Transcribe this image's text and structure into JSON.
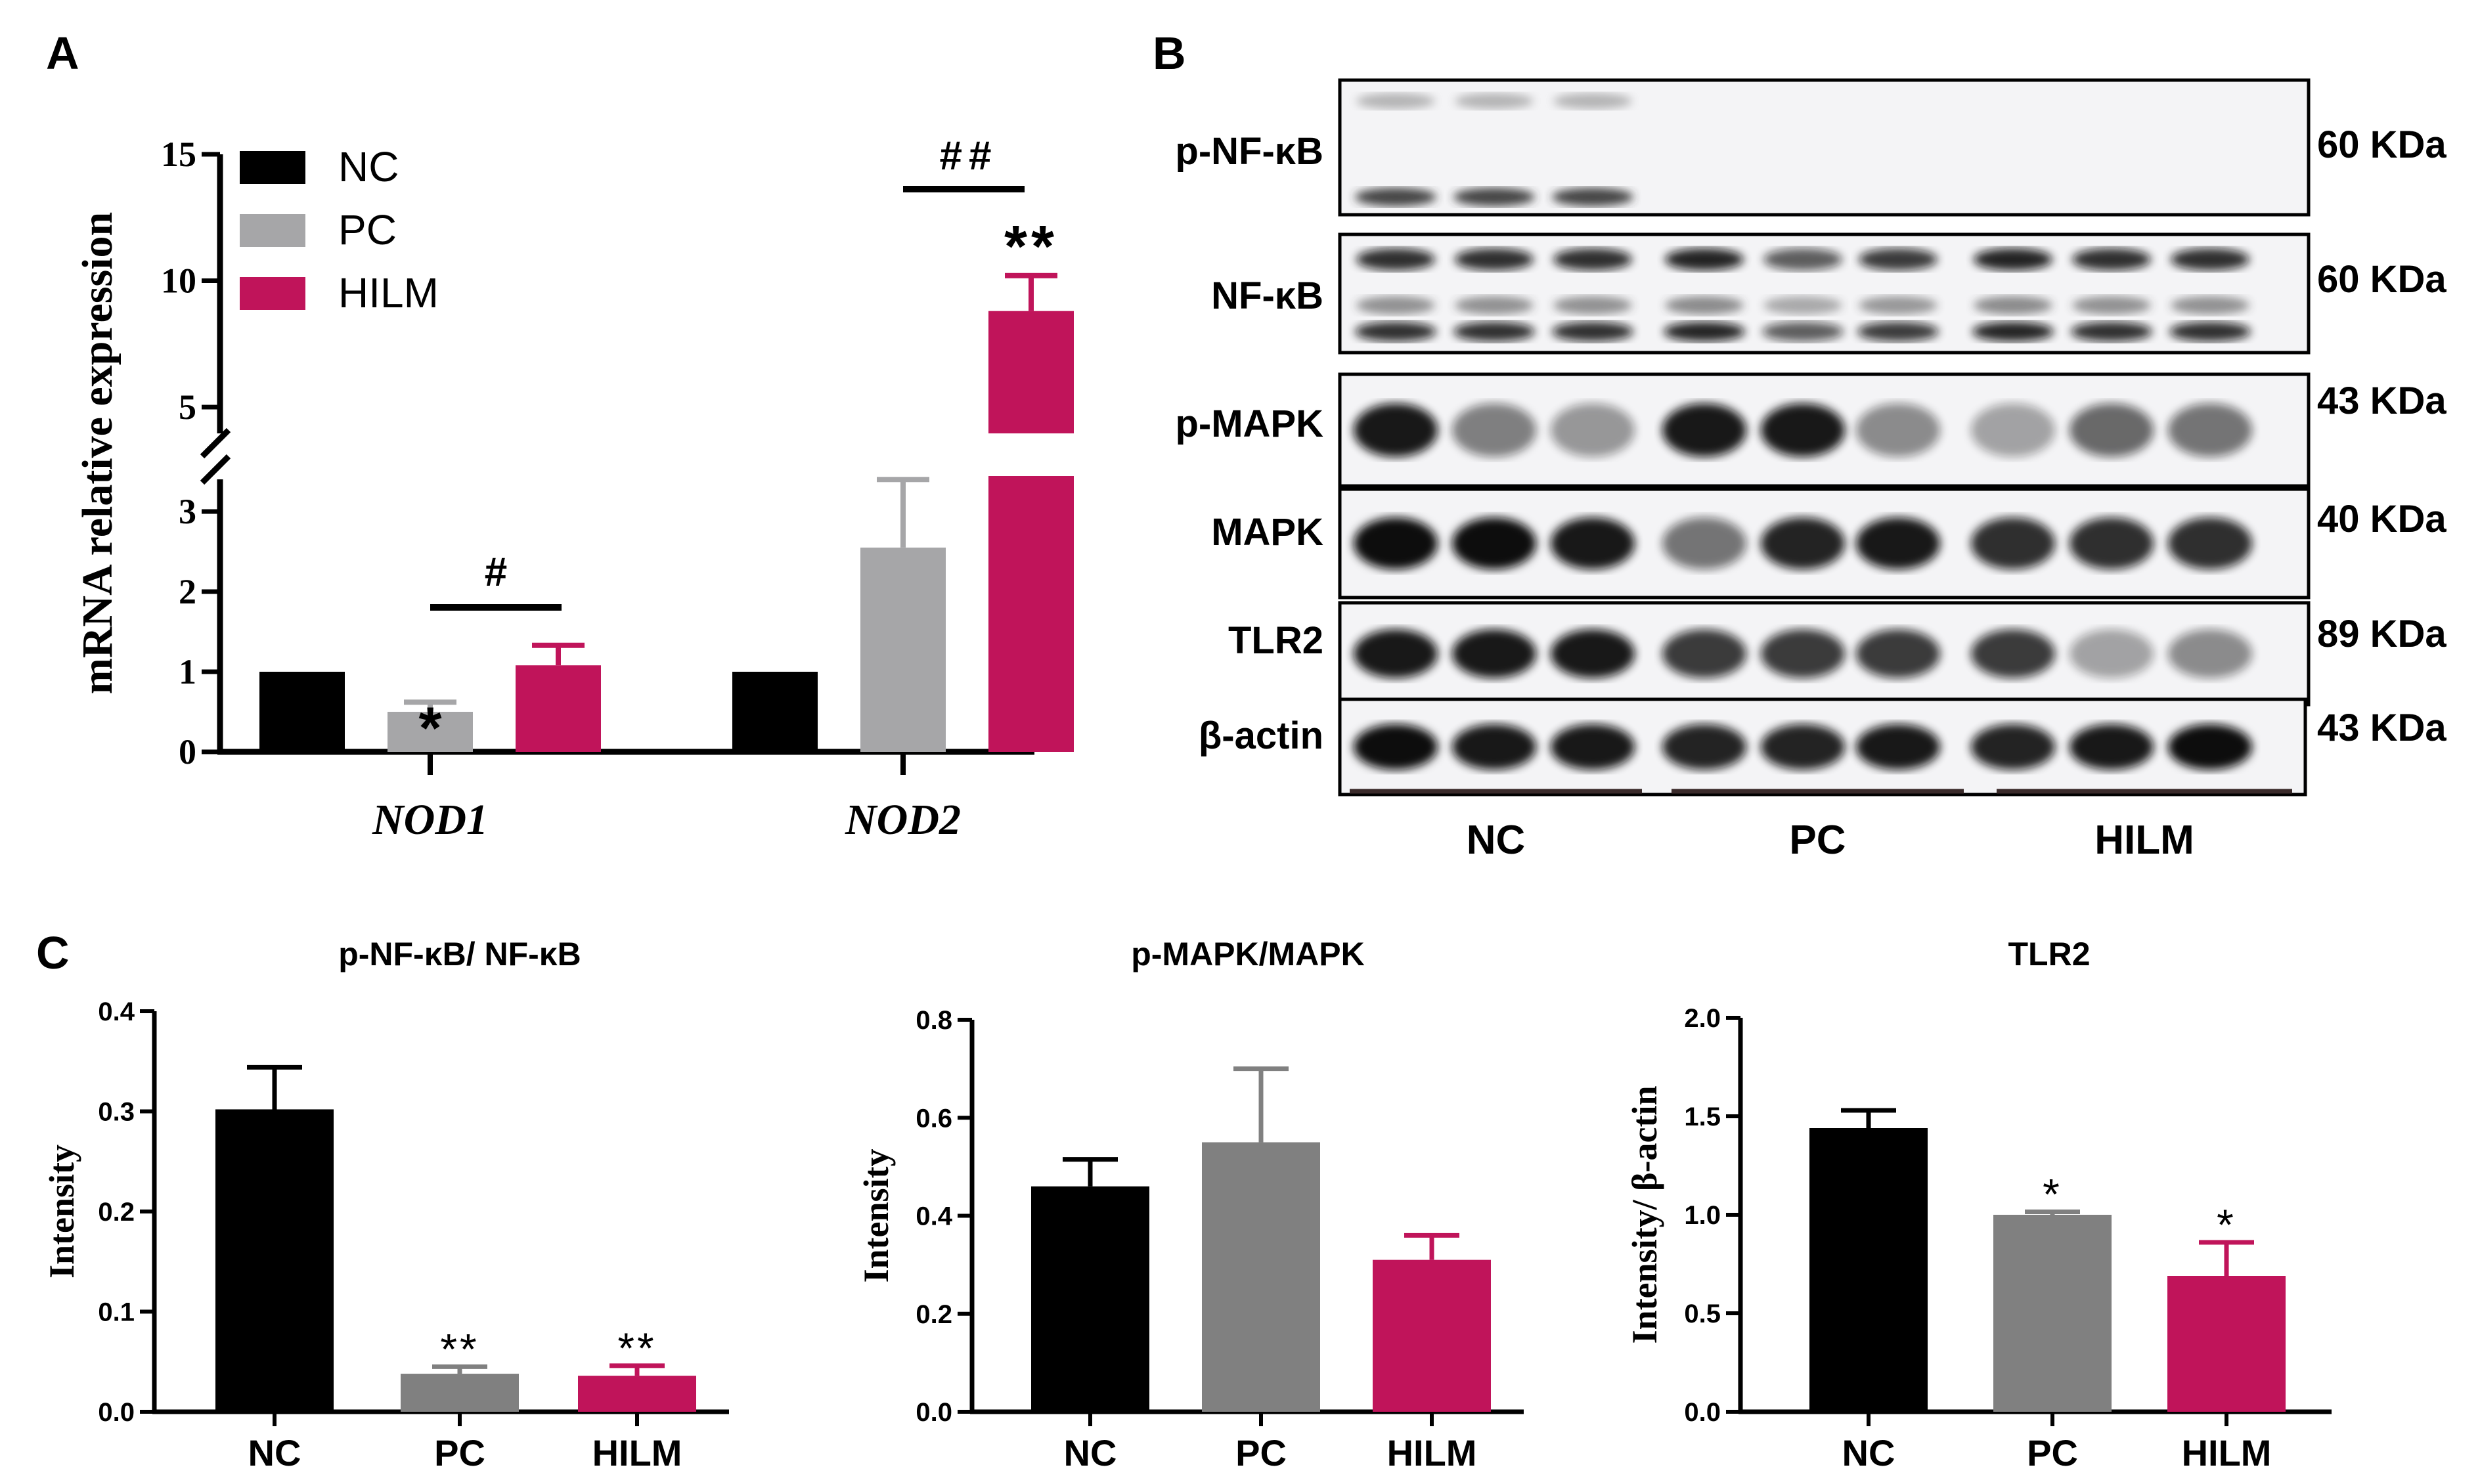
{
  "colors": {
    "NC": "#000000",
    "PC_A": "#a6a6a8",
    "PC_C": "#808080",
    "HILM": "#c0145a",
    "axis": "#000000"
  },
  "panels": {
    "A": "A",
    "B": "B",
    "C": "C"
  },
  "chart_data": [
    {
      "type": "bar",
      "panel": "A",
      "ylabel": "mRNA relative expression",
      "categories": [
        "NOD1",
        "NOD2"
      ],
      "legend": [
        "NC",
        "PC",
        "HILM"
      ],
      "legend_position": "top-left",
      "series": [
        {
          "name": "NC",
          "values": [
            1.0,
            1.0
          ],
          "errors": [
            0,
            0
          ]
        },
        {
          "name": "PC",
          "values": [
            0.5,
            2.55
          ],
          "errors": [
            0.12,
            0.85
          ]
        },
        {
          "name": "HILM",
          "values": [
            1.08,
            8.8
          ],
          "errors": [
            0.25,
            1.4
          ]
        }
      ],
      "y_ticks_lower": [
        "0",
        "1",
        "2",
        "3"
      ],
      "y_ticks_upper": [
        "5",
        "10",
        "15"
      ],
      "ylim": [
        0,
        15
      ],
      "axis_break": [
        3.5,
        5
      ],
      "annotations": {
        "nod1_pc": "*",
        "nod1_bracket": "#",
        "nod2_hilm": "**",
        "nod2_bracket": "##"
      }
    },
    {
      "type": "bar",
      "panel": "C1",
      "title": "p-NF-κB/ NF-κB",
      "ylabel": "Intensity",
      "categories": [
        "NC",
        "PC",
        "HILM"
      ],
      "values": [
        0.302,
        0.038,
        0.036
      ],
      "errors": [
        0.042,
        0.007,
        0.01
      ],
      "marks": [
        "",
        "**",
        "**"
      ],
      "ylim": [
        0,
        0.4
      ],
      "y_ticks": [
        "0.0",
        "0.1",
        "0.2",
        "0.3",
        "0.4"
      ]
    },
    {
      "type": "bar",
      "panel": "C2",
      "title": "p-MAPK/MAPK",
      "ylabel": "Intensity",
      "categories": [
        "NC",
        "PC",
        "HILM"
      ],
      "values": [
        0.46,
        0.55,
        0.31
      ],
      "errors": [
        0.055,
        0.15,
        0.05
      ],
      "marks": [
        "",
        "",
        ""
      ],
      "ylim": [
        0,
        0.8
      ],
      "y_ticks": [
        "0.0",
        "0.2",
        "0.4",
        "0.6",
        "0.8"
      ]
    },
    {
      "type": "bar",
      "panel": "C3",
      "title": "TLR2",
      "ylabel": "Intensity/ β-actin",
      "categories": [
        "NC",
        "PC",
        "HILM"
      ],
      "values": [
        1.44,
        1.0,
        0.69
      ],
      "errors": [
        0.09,
        0.015,
        0.17
      ],
      "marks": [
        "",
        "*",
        "*"
      ],
      "ylim": [
        0,
        2.0
      ],
      "y_ticks": [
        "0.0",
        "0.5",
        "1.0",
        "1.5",
        "2.0"
      ]
    }
  ],
  "western_blot": {
    "rows": [
      {
        "protein": "p-NF-κB",
        "size": "60 KDa",
        "lanes": [
          0.35,
          0.3,
          0.35,
          0,
          0,
          0,
          0,
          0,
          0
        ]
      },
      {
        "protein": "NF-κB",
        "size": "60 KDa",
        "lanes": [
          0.85,
          0.85,
          0.85,
          0.9,
          0.65,
          0.8,
          0.9,
          0.85,
          0.85
        ]
      },
      {
        "protein": "p-MAPK",
        "size": "43 KDa",
        "lanes": [
          0.95,
          0.5,
          0.4,
          0.95,
          0.95,
          0.45,
          0.35,
          0.6,
          0.55
        ]
      },
      {
        "protein": "MAPK",
        "size": "40 KDa",
        "lanes": [
          1.0,
          1.0,
          0.95,
          0.55,
          0.9,
          0.95,
          0.85,
          0.85,
          0.85
        ]
      },
      {
        "protein": "TLR2",
        "size": "89 KDa",
        "lanes": [
          0.95,
          0.95,
          0.95,
          0.8,
          0.8,
          0.8,
          0.8,
          0.35,
          0.45
        ]
      },
      {
        "protein": "β-actin",
        "size": "43 KDa",
        "lanes": [
          1.0,
          0.95,
          0.95,
          0.9,
          0.9,
          0.95,
          0.9,
          0.95,
          1.0
        ]
      }
    ],
    "groups": [
      "NC",
      "PC",
      "HILM"
    ]
  }
}
